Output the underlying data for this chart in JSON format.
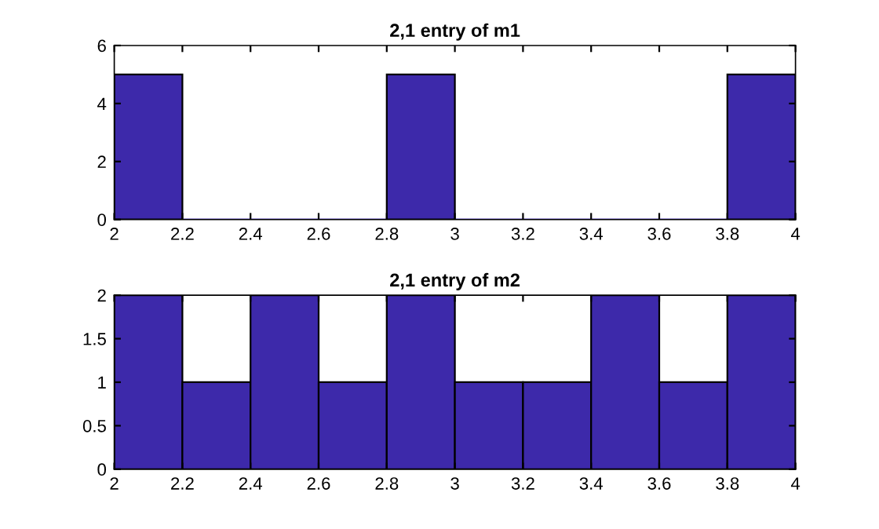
{
  "chart_data": [
    {
      "type": "histogram",
      "title": "2,1 entry of m1",
      "bins": [
        2,
        2.2,
        2.4,
        2.6,
        2.8,
        3,
        3.2,
        3.4,
        3.6,
        3.8,
        4
      ],
      "values": [
        5,
        0,
        0,
        0,
        5,
        0,
        0,
        0,
        0,
        5
      ],
      "color": "#3d29aa",
      "xlim": [
        2,
        4
      ],
      "ylim": [
        0,
        6
      ],
      "xticks": [
        2,
        2.2,
        2.4,
        2.6,
        2.8,
        3,
        3.2,
        3.4,
        3.6,
        3.8,
        4
      ],
      "yticks": [
        0,
        2,
        4,
        6
      ]
    },
    {
      "type": "histogram",
      "title": "2,1 entry of m2",
      "bins": [
        2,
        2.2,
        2.4,
        2.6,
        2.8,
        3,
        3.2,
        3.4,
        3.6,
        3.8,
        4
      ],
      "values": [
        2,
        1,
        2,
        1,
        2,
        1,
        1,
        2,
        1,
        2
      ],
      "color": "#3d29aa",
      "xlim": [
        2,
        4
      ],
      "ylim": [
        0,
        2
      ],
      "xticks": [
        2,
        2.2,
        2.4,
        2.6,
        2.8,
        3,
        3.2,
        3.4,
        3.6,
        3.8,
        4
      ],
      "yticks": [
        0,
        0.5,
        1,
        1.5,
        2
      ]
    }
  ]
}
